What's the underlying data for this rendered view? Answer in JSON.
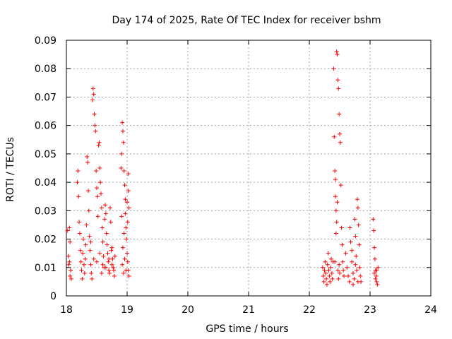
{
  "chart_data": {
    "type": "scatter",
    "title": "Day 174 of 2025, Rate Of TEC Index for receiver bshm",
    "xlabel": "GPS time / hours",
    "ylabel": "ROTI / TECUs",
    "xlim": [
      18,
      24
    ],
    "ylim": [
      0,
      0.09
    ],
    "x_ticks": [
      "18",
      "19",
      "20",
      "21",
      "22",
      "23",
      "24"
    ],
    "y_ticks": [
      "0",
      "0.01",
      "0.02",
      "0.03",
      "0.04",
      "0.05",
      "0.06",
      "0.07",
      "0.08",
      "0.09"
    ],
    "grid": true,
    "marker": "+",
    "color": "#ff0000",
    "series": [
      {
        "points": [
          [
            18.02,
            0.023
          ],
          [
            18.03,
            0.014
          ],
          [
            18.04,
            0.011
          ],
          [
            18.05,
            0.012
          ],
          [
            18.06,
            0.007
          ],
          [
            18.07,
            0.009
          ],
          [
            18.08,
            0.006
          ],
          [
            18.06,
            0.019
          ],
          [
            18.05,
            0.024
          ],
          [
            18.18,
            0.04
          ],
          [
            18.19,
            0.044
          ],
          [
            18.2,
            0.035
          ],
          [
            18.21,
            0.026
          ],
          [
            18.22,
            0.022
          ],
          [
            18.23,
            0.016
          ],
          [
            18.24,
            0.012
          ],
          [
            18.25,
            0.009
          ],
          [
            18.26,
            0.006
          ],
          [
            18.27,
            0.015
          ],
          [
            18.28,
            0.02
          ],
          [
            18.29,
            0.011
          ],
          [
            18.3,
            0.008
          ],
          [
            18.31,
            0.013
          ],
          [
            18.32,
            0.018
          ],
          [
            18.33,
            0.025
          ],
          [
            18.34,
            0.049
          ],
          [
            18.35,
            0.047
          ],
          [
            18.36,
            0.037
          ],
          [
            18.37,
            0.03
          ],
          [
            18.38,
            0.021
          ],
          [
            18.39,
            0.016
          ],
          [
            18.4,
            0.011
          ],
          [
            18.41,
            0.008
          ],
          [
            18.42,
            0.006
          ],
          [
            18.43,
            0.069
          ],
          [
            18.44,
            0.073
          ],
          [
            18.45,
            0.071
          ],
          [
            18.46,
            0.064
          ],
          [
            18.47,
            0.06
          ],
          [
            18.48,
            0.058
          ],
          [
            18.49,
            0.044
          ],
          [
            18.5,
            0.038
          ],
          [
            18.51,
            0.035
          ],
          [
            18.52,
            0.028
          ],
          [
            18.53,
            0.053
          ],
          [
            18.54,
            0.054
          ],
          [
            18.55,
            0.045
          ],
          [
            18.56,
            0.04
          ],
          [
            18.57,
            0.036
          ],
          [
            18.58,
            0.031
          ],
          [
            18.59,
            0.024
          ],
          [
            18.6,
            0.019
          ],
          [
            18.61,
            0.014
          ],
          [
            18.62,
            0.01
          ],
          [
            18.63,
            0.027
          ],
          [
            18.64,
            0.032
          ],
          [
            18.65,
            0.029
          ],
          [
            18.66,
            0.022
          ],
          [
            18.67,
            0.018
          ],
          [
            18.68,
            0.015
          ],
          [
            18.69,
            0.012
          ],
          [
            18.7,
            0.009
          ],
          [
            18.71,
            0.008
          ],
          [
            18.72,
            0.031
          ],
          [
            18.73,
            0.026
          ],
          [
            18.74,
            0.016
          ],
          [
            18.75,
            0.011
          ],
          [
            18.76,
            0.013
          ],
          [
            18.77,
            0.01
          ],
          [
            18.78,
            0.009
          ],
          [
            18.79,
            0.007
          ],
          [
            18.8,
            0.014
          ],
          [
            18.4,
            0.019
          ],
          [
            18.45,
            0.013
          ],
          [
            18.5,
            0.012
          ],
          [
            18.55,
            0.015
          ],
          [
            18.6,
            0.011
          ],
          [
            18.65,
            0.01
          ],
          [
            18.7,
            0.013
          ],
          [
            18.75,
            0.017
          ],
          [
            18.58,
            0.008
          ],
          [
            18.9,
            0.045
          ],
          [
            18.91,
            0.05
          ],
          [
            18.92,
            0.061
          ],
          [
            18.93,
            0.058
          ],
          [
            18.94,
            0.054
          ],
          [
            18.95,
            0.044
          ],
          [
            18.96,
            0.039
          ],
          [
            18.97,
            0.029
          ],
          [
            18.98,
            0.024
          ],
          [
            18.99,
            0.02
          ],
          [
            19.0,
            0.015
          ],
          [
            19.01,
            0.012
          ],
          [
            19.02,
            0.009
          ],
          [
            19.03,
            0.007
          ],
          [
            18.93,
            0.017
          ],
          [
            18.95,
            0.022
          ],
          [
            18.97,
            0.034
          ],
          [
            19.0,
            0.033
          ],
          [
            19.02,
            0.037
          ],
          [
            19.03,
            0.031
          ],
          [
            18.92,
            0.011
          ],
          [
            18.94,
            0.008
          ],
          [
            18.96,
            0.013
          ],
          [
            18.98,
            0.009
          ],
          [
            19.01,
            0.026
          ],
          [
            19.02,
            0.043
          ],
          [
            18.91,
            0.028
          ],
          [
            22.22,
            0.01
          ],
          [
            22.23,
            0.007
          ],
          [
            22.24,
            0.005
          ],
          [
            22.25,
            0.009
          ],
          [
            22.26,
            0.012
          ],
          [
            22.27,
            0.008
          ],
          [
            22.28,
            0.006
          ],
          [
            22.29,
            0.004
          ],
          [
            22.3,
            0.011
          ],
          [
            22.31,
            0.015
          ],
          [
            22.32,
            0.009
          ],
          [
            22.33,
            0.007
          ],
          [
            22.34,
            0.005
          ],
          [
            22.35,
            0.01
          ],
          [
            22.36,
            0.013
          ],
          [
            22.37,
            0.008
          ],
          [
            22.38,
            0.006
          ],
          [
            22.39,
            0.012
          ],
          [
            22.4,
            0.08
          ],
          [
            22.41,
            0.056
          ],
          [
            22.42,
            0.044
          ],
          [
            22.43,
            0.041
          ],
          [
            22.44,
            0.03
          ],
          [
            22.45,
            0.086
          ],
          [
            22.46,
            0.085
          ],
          [
            22.47,
            0.076
          ],
          [
            22.48,
            0.073
          ],
          [
            22.49,
            0.064
          ],
          [
            22.5,
            0.057
          ],
          [
            22.51,
            0.054
          ],
          [
            22.52,
            0.039
          ],
          [
            22.53,
            0.024
          ],
          [
            22.54,
            0.018
          ],
          [
            22.55,
            0.012
          ],
          [
            22.56,
            0.009
          ],
          [
            22.57,
            0.007
          ],
          [
            22.44,
            0.022
          ],
          [
            22.45,
            0.026
          ],
          [
            22.46,
            0.033
          ],
          [
            22.47,
            0.009
          ],
          [
            22.48,
            0.006
          ],
          [
            22.49,
            0.011
          ],
          [
            22.5,
            0.008
          ],
          [
            22.43,
            0.035
          ],
          [
            22.42,
            0.012
          ],
          [
            22.6,
            0.015
          ],
          [
            22.62,
            0.01
          ],
          [
            22.64,
            0.007
          ],
          [
            22.66,
            0.005
          ],
          [
            22.67,
            0.024
          ],
          [
            22.68,
            0.019
          ],
          [
            22.7,
            0.012
          ],
          [
            22.72,
            0.008
          ],
          [
            22.74,
            0.006
          ],
          [
            22.75,
            0.027
          ],
          [
            22.76,
            0.021
          ],
          [
            22.77,
            0.014
          ],
          [
            22.78,
            0.009
          ],
          [
            22.79,
            0.034
          ],
          [
            22.8,
            0.031
          ],
          [
            22.81,
            0.025
          ],
          [
            22.82,
            0.018
          ],
          [
            22.83,
            0.01
          ],
          [
            22.84,
            0.007
          ],
          [
            22.85,
            0.005
          ],
          [
            22.7,
            0.016
          ],
          [
            22.72,
            0.004
          ],
          [
            22.76,
            0.011
          ],
          [
            22.8,
            0.005
          ],
          [
            23.05,
            0.027
          ],
          [
            23.06,
            0.023
          ],
          [
            23.07,
            0.017
          ],
          [
            23.08,
            0.013
          ],
          [
            23.09,
            0.009
          ],
          [
            23.1,
            0.007
          ],
          [
            23.11,
            0.005
          ],
          [
            23.12,
            0.004
          ],
          [
            23.13,
            0.01
          ],
          [
            23.07,
            0.008
          ],
          [
            23.09,
            0.006
          ],
          [
            23.11,
            0.009
          ]
        ]
      }
    ]
  }
}
